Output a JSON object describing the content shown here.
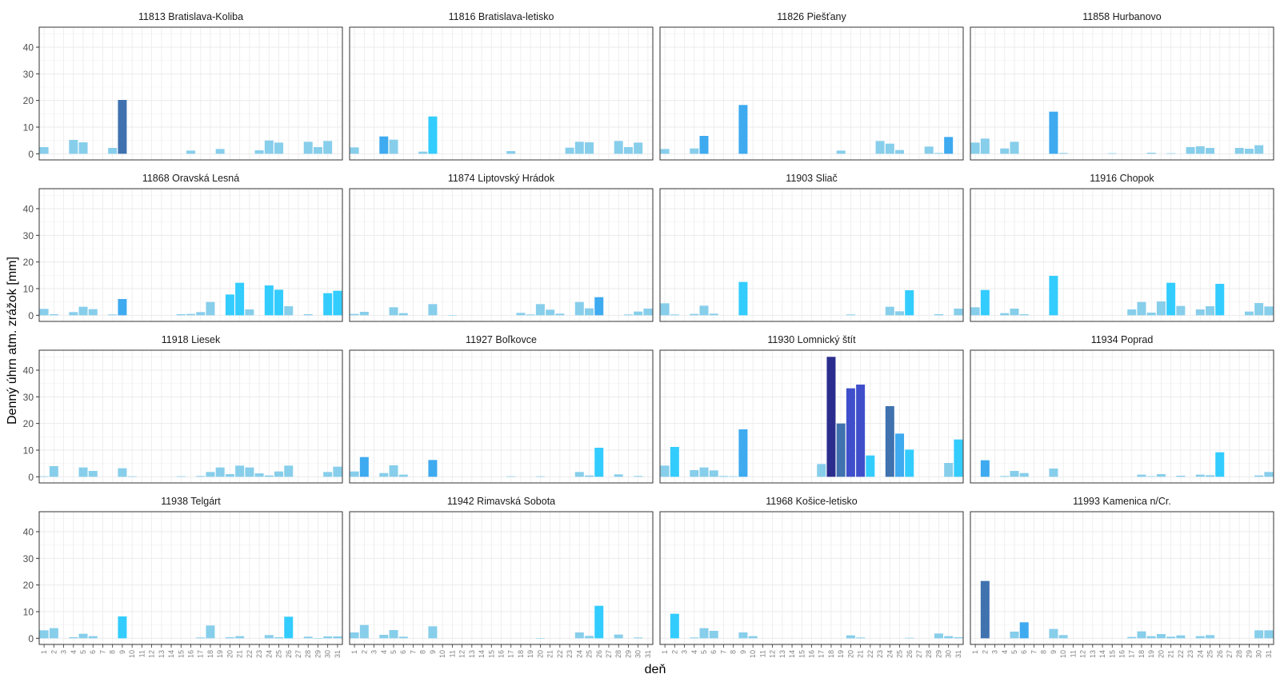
{
  "chart_data": {
    "type": "bar",
    "xlabel": "deň",
    "ylabel": "Denný úhrn atm. zrážok [mm]",
    "ylim": [
      -2.3,
      47.5
    ],
    "yticks": [
      0,
      10,
      20,
      30,
      40
    ],
    "days": [
      "1",
      "2",
      "3",
      "4",
      "5",
      "6",
      "7",
      "8",
      "9",
      "10",
      "11",
      "12",
      "13",
      "14",
      "15",
      "16",
      "17",
      "18",
      "19",
      "20",
      "21",
      "22",
      "23",
      "24",
      "25",
      "26",
      "27",
      "28",
      "29",
      "30",
      "31"
    ],
    "grid": true,
    "colors": {
      "low": "#87CEEB",
      "mid": "#3EAAF0",
      "bright": "#33CCFF",
      "steel": "#3F72AF",
      "royal": "#3F4FCB",
      "navy": "#2B2D8E",
      "panel_border": "#333333",
      "grid": "#EBEBEB"
    },
    "panels": [
      {
        "title": "11813 Bratislava-Koliba",
        "values": [
          2.5,
          0,
          0,
          5.2,
          4.3,
          0,
          0,
          2.2,
          20.2,
          0,
          0,
          0,
          0,
          0,
          0,
          1.2,
          0,
          0,
          1.8,
          0,
          0,
          0,
          1.3,
          5,
          4.2,
          0,
          0,
          4.5,
          2.5,
          4.8,
          0
        ]
      },
      {
        "title": "11816 Bratislava-letisko",
        "values": [
          2.4,
          0,
          0,
          6.5,
          5.3,
          0,
          0,
          0.8,
          14,
          0,
          0,
          0,
          0,
          0,
          0,
          0,
          1,
          0,
          0,
          0,
          0,
          0,
          2.3,
          4.5,
          4.3,
          0,
          0,
          4.8,
          2.5,
          4.2,
          0
        ]
      },
      {
        "title": "11826 Piešťany",
        "values": [
          1.8,
          0,
          0,
          2,
          6.7,
          0,
          0,
          0,
          18.3,
          0,
          0,
          0,
          0,
          0,
          0,
          0,
          0,
          0,
          1.2,
          0,
          0,
          0,
          4.8,
          3.8,
          1.4,
          0,
          0,
          2.7,
          0.3,
          6.3,
          0
        ]
      },
      {
        "title": "11858 Hurbanovo",
        "values": [
          4.2,
          5.7,
          0,
          2,
          4.5,
          0,
          0,
          0,
          15.8,
          0.3,
          0,
          0,
          0,
          0,
          0.2,
          0,
          0,
          0,
          0.4,
          0,
          0.2,
          0,
          2.5,
          2.8,
          2.2,
          0,
          0,
          2.2,
          1.9,
          3.2,
          0
        ]
      },
      {
        "title": "11868 Oravská Lesná",
        "values": [
          2.4,
          0.4,
          0,
          1.2,
          3.2,
          2.3,
          0,
          0.3,
          6.1,
          0,
          0,
          0,
          0,
          0,
          0.4,
          0.5,
          1.2,
          5,
          0,
          7.8,
          12.2,
          2.2,
          0,
          11.2,
          9.6,
          3.4,
          0,
          0.4,
          0,
          8.3,
          9.2
        ]
      },
      {
        "title": "11874 Liptovský Hrádok",
        "values": [
          0.5,
          1.3,
          0,
          0,
          3,
          0.8,
          0,
          0,
          4.2,
          0,
          0.1,
          0,
          0,
          0,
          0,
          0,
          0,
          0.9,
          0.3,
          4.2,
          2.1,
          0.6,
          0,
          5,
          2.6,
          6.8,
          0,
          0,
          0.3,
          1.4,
          2.5
        ]
      },
      {
        "title": "11903 Sliač",
        "values": [
          4.5,
          0.3,
          0,
          0.5,
          3.6,
          0.6,
          0,
          0,
          12.5,
          0,
          0,
          0,
          0,
          0,
          0,
          0,
          0,
          0,
          0,
          0.3,
          0,
          0,
          0,
          3.2,
          1.5,
          9.4,
          0,
          0,
          0.4,
          0,
          2.5
        ]
      },
      {
        "title": "11916 Chopok",
        "values": [
          3,
          9.5,
          0,
          0.8,
          2.5,
          0.4,
          0,
          0,
          14.8,
          0,
          0,
          0,
          0,
          0,
          0,
          0,
          2.2,
          5,
          1,
          5.2,
          12.2,
          3.5,
          0,
          2.2,
          3.4,
          11.8,
          0,
          0,
          1.4,
          4.6,
          3.3
        ]
      },
      {
        "title": "11918 Liesek",
        "values": [
          0.2,
          4,
          0,
          0,
          3.5,
          2.2,
          0,
          0,
          3.2,
          0.2,
          0,
          0,
          0,
          0,
          0.2,
          0,
          0.3,
          1.8,
          3.5,
          1,
          4.2,
          3.5,
          1.3,
          0.5,
          2,
          4.2,
          0,
          0,
          0,
          1.8,
          3.8
        ]
      },
      {
        "title": "11927 Boľkovce",
        "values": [
          2,
          7.4,
          0,
          1.4,
          4.3,
          0.8,
          0,
          0,
          6.3,
          0,
          0,
          0,
          0,
          0,
          0,
          0,
          0.2,
          0,
          0,
          0.2,
          0,
          0,
          0,
          1.8,
          0.5,
          10.9,
          0,
          0.9,
          0,
          0.3,
          0
        ]
      },
      {
        "title": "11930 Lomnický štít",
        "values": [
          4.2,
          11.2,
          0,
          2.5,
          3.5,
          2.4,
          0.3,
          0.2,
          17.8,
          0,
          0,
          0,
          0,
          0,
          0,
          0,
          4.8,
          45,
          20,
          33.2,
          34.6,
          8,
          0,
          26.5,
          16.2,
          10.2,
          0,
          0,
          0,
          5.2,
          14
        ]
      },
      {
        "title": "11934 Poprad",
        "values": [
          0,
          6.2,
          0,
          0.3,
          2.2,
          1.4,
          0,
          0,
          3.1,
          0,
          0,
          0,
          0,
          0,
          0,
          0,
          0,
          0.8,
          0.2,
          1,
          0,
          0.4,
          0,
          0.8,
          0.6,
          9.2,
          0,
          0,
          0,
          0.5,
          1.8
        ]
      },
      {
        "title": "11938 Telgárt",
        "values": [
          3,
          3.8,
          0,
          0.4,
          1.7,
          0.8,
          0,
          0,
          8.2,
          0,
          0,
          0,
          0,
          0,
          0,
          0,
          0.3,
          4.8,
          0,
          0.4,
          0.8,
          0,
          0,
          1.2,
          0.4,
          8.1,
          0,
          0.6,
          0.1,
          0.7,
          0.7
        ]
      },
      {
        "title": "11942 Rimavská Sobota",
        "values": [
          2.2,
          5,
          0,
          1.3,
          3.1,
          0.6,
          0,
          0,
          4.5,
          0,
          0,
          0,
          0,
          0,
          0,
          0,
          0,
          0,
          0,
          0.1,
          0,
          0,
          0,
          2.2,
          0.9,
          12.2,
          0,
          1.4,
          0,
          0.3,
          0
        ]
      },
      {
        "title": "11968 Košice-letisko",
        "values": [
          0,
          9.2,
          0,
          0.3,
          3.8,
          2.8,
          0,
          0,
          2.2,
          0.8,
          0,
          0,
          0,
          0,
          0,
          0,
          0,
          0,
          0,
          1.1,
          0.3,
          0,
          0,
          0,
          0,
          0.2,
          0,
          0,
          1.8,
          0.8,
          0.4
        ]
      },
      {
        "title": "11993 Kamenica n/Cr.",
        "values": [
          0,
          21.5,
          0,
          0,
          2.5,
          6,
          0,
          0,
          3.5,
          1.2,
          0,
          0,
          0,
          0,
          0,
          0,
          0.5,
          2.6,
          0.8,
          1.6,
          0.6,
          1.1,
          0,
          0.8,
          1.2,
          0,
          0,
          0,
          0,
          3,
          3
        ]
      }
    ]
  }
}
